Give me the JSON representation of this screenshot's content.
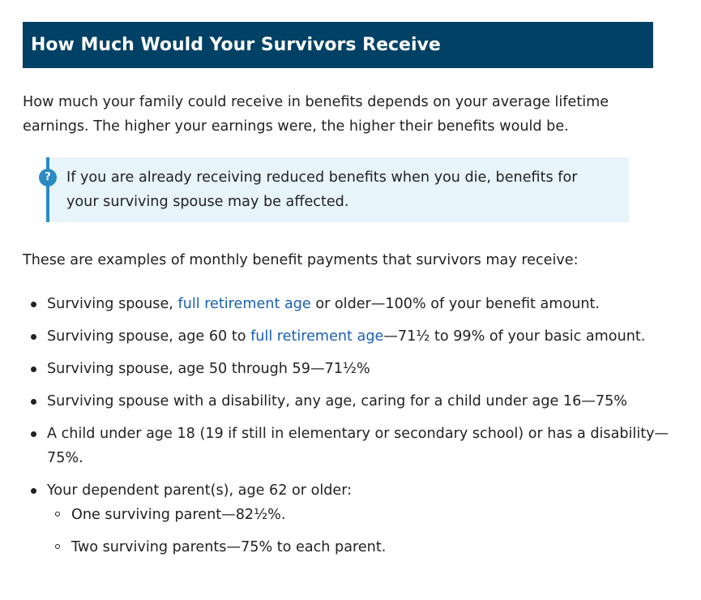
{
  "header": {
    "title": "How Much Would Your Survivors Receive"
  },
  "intro": {
    "text": "How much your family could receive in benefits depends on your average lifetime earnings. The higher your earnings were, the higher their benefits would be."
  },
  "callout": {
    "icon": "question-icon",
    "icon_glyph": "?",
    "text": "If you are already receiving reduced benefits when you die, benefits for your surviving spouse may be affected."
  },
  "examples": {
    "lead": "These are examples of monthly benefit payments that survivors may receive:",
    "items": [
      {
        "before": "Surviving spouse, ",
        "link": "full retirement age",
        "after": " or older—100% of your benefit amount."
      },
      {
        "before": "Surviving spouse, age 60 to ",
        "link": "full retirement age",
        "after": "—71½ to 99% of your basic amount."
      },
      {
        "text": "Surviving spouse, age 50 through 59—71½%"
      },
      {
        "text": "Surviving spouse with a disability, any age, caring for a child under age 16—75%"
      },
      {
        "text": "A child under age 18 (19 if still in elementary or secondary school) or has a disability—75%."
      },
      {
        "text": "Your dependent parent(s), age 62 or older:",
        "sub": [
          "One surviving parent—82½%.",
          "Two surviving parents—75% to each parent."
        ]
      }
    ]
  },
  "colors": {
    "header_bg": "#004165",
    "callout_bg": "#e7f4fa",
    "callout_accent": "#2a8ac3",
    "link": "#1a5fb4"
  }
}
